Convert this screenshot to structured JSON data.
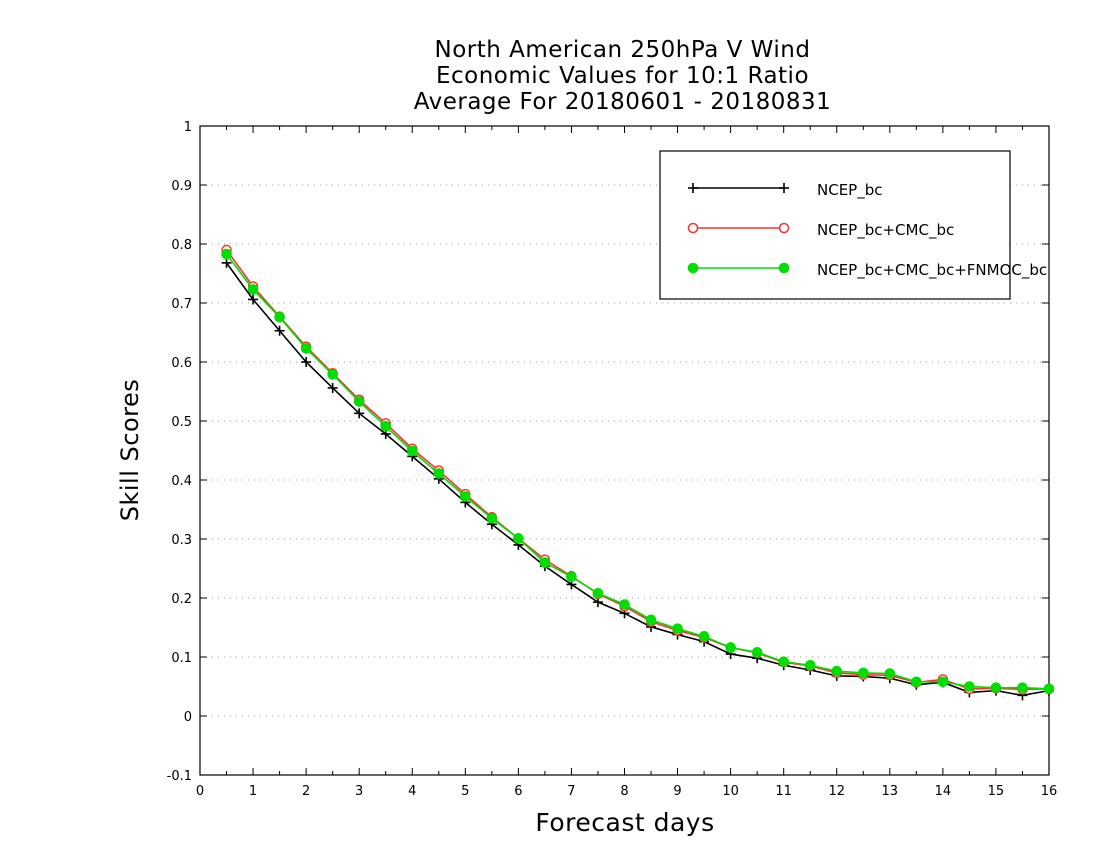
{
  "chart_data": {
    "type": "line",
    "title_lines": [
      "North American 250hPa V Wind",
      "Economic Values for 10:1 Ratio",
      "Average For 20180601 - 20180831"
    ],
    "xlabel": "Forecast days",
    "ylabel": "Skill Scores",
    "xlim": [
      0,
      16
    ],
    "ylim": [
      -0.1,
      1
    ],
    "xticks": [
      "0",
      "1",
      "2",
      "3",
      "4",
      "5",
      "6",
      "7",
      "8",
      "9",
      "10",
      "11",
      "12",
      "13",
      "14",
      "15",
      "16"
    ],
    "yticks": [
      "-0.1",
      "0",
      "0.1",
      "0.2",
      "0.3",
      "0.4",
      "0.5",
      "0.6",
      "0.7",
      "0.8",
      "0.9",
      "1"
    ],
    "grid": true,
    "legend_position": "top-right",
    "x": [
      0.5,
      1,
      1.5,
      2,
      2.5,
      3,
      3.5,
      4,
      4.5,
      5,
      5.5,
      6,
      6.5,
      7,
      7.5,
      8,
      8.5,
      9,
      9.5,
      10,
      10.5,
      11,
      11.5,
      12,
      12.5,
      13,
      13.5,
      14,
      14.5,
      15,
      15.5,
      16
    ],
    "series": [
      {
        "name": "NCEP_bc",
        "color": "#000000",
        "marker": "plus",
        "values": [
          0.768,
          0.706,
          0.653,
          0.6,
          0.556,
          0.513,
          0.478,
          0.44,
          0.402,
          0.362,
          0.325,
          0.29,
          0.254,
          0.223,
          0.193,
          0.174,
          0.151,
          0.138,
          0.126,
          0.105,
          0.098,
          0.086,
          0.078,
          0.068,
          0.067,
          0.064,
          0.053,
          0.057,
          0.04,
          0.043,
          0.035,
          0.043
        ]
      },
      {
        "name": "NCEP_bc+CMC_bc",
        "color": "#ff3030",
        "marker": "open-circle",
        "values": [
          0.79,
          0.728,
          0.677,
          0.626,
          0.581,
          0.536,
          0.496,
          0.453,
          0.416,
          0.376,
          0.337,
          0.301,
          0.265,
          0.237,
          0.207,
          0.186,
          0.16,
          0.145,
          0.133,
          0.116,
          0.107,
          0.091,
          0.085,
          0.073,
          0.07,
          0.069,
          0.057,
          0.062,
          0.046,
          0.047,
          0.045,
          0.046
        ]
      },
      {
        "name": "NCEP_bc+CMC_bc+FNMOC_bc",
        "color": "#00dd00",
        "marker": "filled-circle",
        "values": [
          0.783,
          0.723,
          0.676,
          0.623,
          0.579,
          0.533,
          0.491,
          0.449,
          0.411,
          0.372,
          0.335,
          0.301,
          0.26,
          0.236,
          0.208,
          0.189,
          0.163,
          0.148,
          0.135,
          0.116,
          0.108,
          0.092,
          0.086,
          0.076,
          0.073,
          0.072,
          0.058,
          0.058,
          0.05,
          0.048,
          0.048,
          0.046
        ]
      }
    ]
  }
}
